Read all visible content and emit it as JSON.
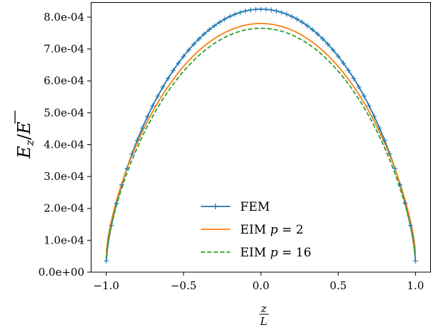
{
  "chart_data": {
    "type": "line",
    "title": "",
    "xlabel": {
      "numerator": "z",
      "denominator": "L"
    },
    "ylabel": {
      "main": "E",
      "subscript": "z",
      "divider": "/",
      "denominator": "E"
    },
    "xlim": [
      -1.0,
      1.0
    ],
    "ylim": [
      0.0,
      0.000847
    ],
    "xticks": [
      -1.0,
      -0.5,
      0.0,
      0.5,
      1.0
    ],
    "xtick_labels": [
      "−1.0",
      "−0.5",
      "0.0",
      "0.5",
      "1.0"
    ],
    "yticks": [
      0.0,
      0.0001,
      0.0002,
      0.0003,
      0.0004,
      0.0005,
      0.0006,
      0.0007,
      0.0008
    ],
    "ytick_labels": [
      "0.0e+00",
      "1.0e-04",
      "2.0e-04",
      "3.0e-04",
      "4.0e-04",
      "5.0e-04",
      "6.0e-04",
      "7.0e-04",
      "8.0e-04"
    ],
    "grid": false,
    "legend_position": "lower-center",
    "series": [
      {
        "name": "FEM",
        "color": "#1f77b4",
        "style": "solid",
        "marker": "plus",
        "peak": 0.000825,
        "endpoint": 3.5e-05,
        "n_points": 61
      },
      {
        "name": "EIM p = 2",
        "name_parts": [
          "EIM ",
          "p",
          " = 2"
        ],
        "color": "#ff7f0e",
        "style": "solid",
        "peak": 0.00078,
        "endpoint": 6e-05
      },
      {
        "name": "EIM p = 16",
        "name_parts": [
          "EIM ",
          "p",
          " = 16"
        ],
        "color": "#2ca02c",
        "style": "dashed",
        "peak": 0.000765,
        "endpoint": 4.5e-05
      }
    ]
  }
}
